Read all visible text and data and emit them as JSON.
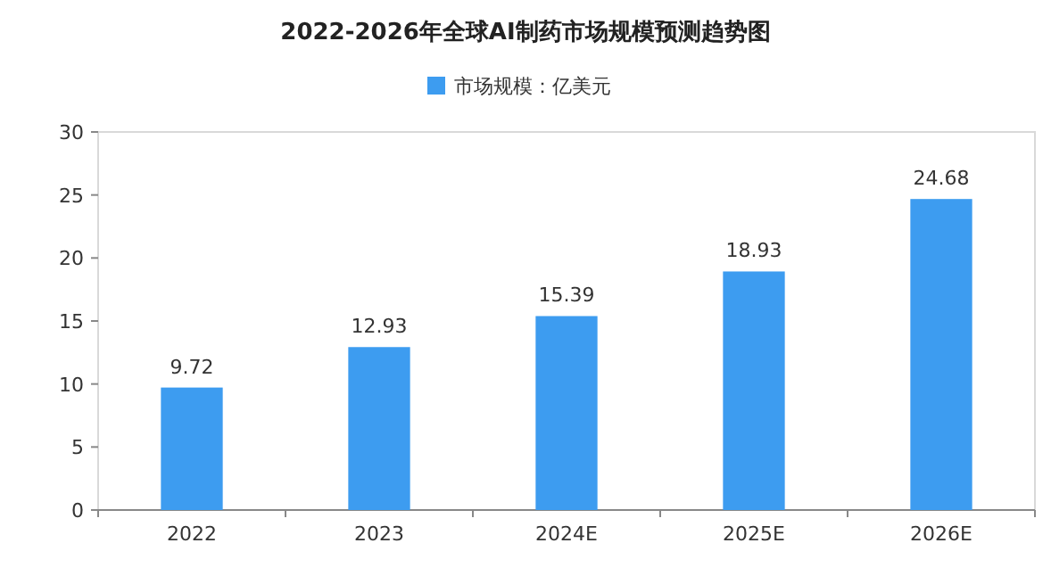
{
  "chart_data": {
    "type": "bar",
    "title": "2022-2026年全球AI制药市场规模预测趋势图",
    "categories": [
      "2022",
      "2023",
      "2024E",
      "2025E",
      "2026E"
    ],
    "series": [
      {
        "name": "市场规模：亿美元",
        "color": "#3d9cf0",
        "values": [
          9.72,
          12.93,
          15.39,
          18.93,
          24.68
        ]
      }
    ],
    "ylim": [
      0,
      30
    ],
    "yticks": [
      0,
      5,
      10,
      15,
      20,
      25,
      30
    ],
    "data_labels": true,
    "legend": "top",
    "grid": false
  }
}
